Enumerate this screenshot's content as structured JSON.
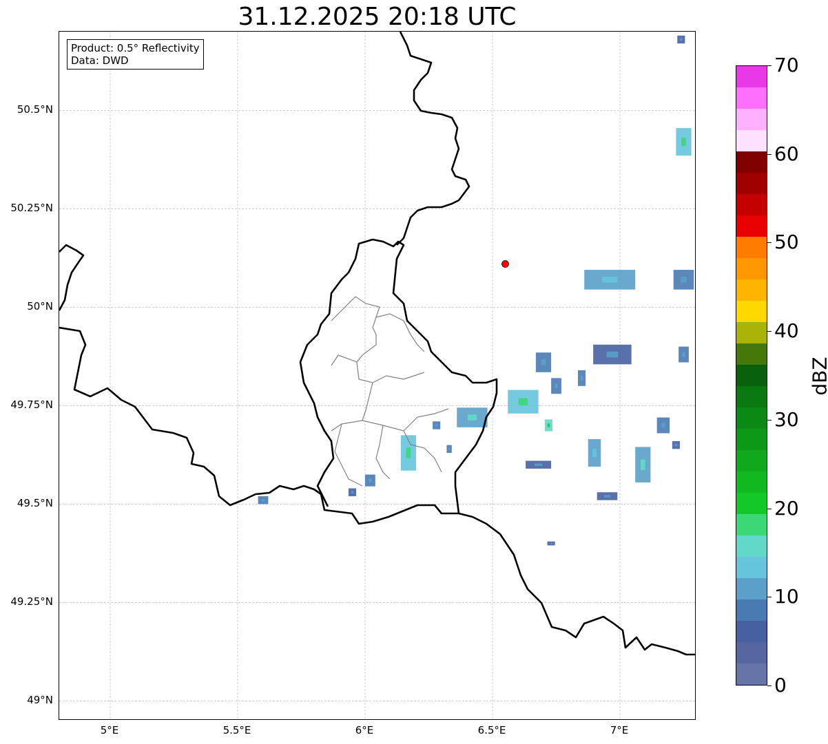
{
  "title": "31.12.2025 20:18 UTC",
  "info": {
    "product": "Product: 0.5° Reflectivity",
    "source": "Data: DWD"
  },
  "map": {
    "lon_range": [
      4.8,
      7.3
    ],
    "lat_range": [
      48.95,
      50.7
    ],
    "lat_ticks": [
      {
        "value": 49.0,
        "label": "49°N"
      },
      {
        "value": 49.25,
        "label": "49.25°N"
      },
      {
        "value": 49.5,
        "label": "49.5°N"
      },
      {
        "value": 49.75,
        "label": "49.75°N"
      },
      {
        "value": 50.0,
        "label": "50°N"
      },
      {
        "value": 50.25,
        "label": "50.25°N"
      },
      {
        "value": 50.5,
        "label": "50.5°N"
      }
    ],
    "lon_ticks": [
      {
        "value": 5.0,
        "label": "5°E"
      },
      {
        "value": 5.5,
        "label": "5.5°E"
      },
      {
        "value": 6.0,
        "label": "6°E"
      },
      {
        "value": 6.5,
        "label": "6.5°E"
      },
      {
        "value": 7.0,
        "label": "7°E"
      }
    ],
    "radar_site": {
      "lon": 6.55,
      "lat": 50.11,
      "color": "#ff0000"
    },
    "gridline_color": "#b0b0b0",
    "border_color": "#000000",
    "district_color": "#808080"
  },
  "colorbar": {
    "label": "dBZ",
    "min": 0,
    "max": 70,
    "ticks": [
      "0",
      "10",
      "20",
      "30",
      "40",
      "50",
      "60",
      "70"
    ],
    "colors": [
      "#6674a8",
      "#5566a0",
      "#4660a2",
      "#4a7ab2",
      "#5aa0c8",
      "#66c4dc",
      "#62d8c8",
      "#3cd878",
      "#14c828",
      "#12b820",
      "#10a81c",
      "#0e9818",
      "#0c8814",
      "#0a7810",
      "#08600c",
      "#457809",
      "#aab408",
      "#ffd800",
      "#ffb400",
      "#ff9800",
      "#ff7c00",
      "#e80000",
      "#c40000",
      "#a00000",
      "#800000",
      "#ffe0ff",
      "#ffb0ff",
      "#ff70ff",
      "#e838e8"
    ]
  },
  "echoes": [
    {
      "lon": 6.62,
      "lat": 49.76,
      "w": 0.12,
      "h": 0.06,
      "dbz": 14
    },
    {
      "lon": 6.42,
      "lat": 49.72,
      "w": 0.12,
      "h": 0.05,
      "dbz": 12
    },
    {
      "lon": 6.17,
      "lat": 49.63,
      "w": 0.06,
      "h": 0.09,
      "dbz": 14
    },
    {
      "lon": 6.02,
      "lat": 49.56,
      "w": 0.04,
      "h": 0.03,
      "dbz": 8
    },
    {
      "lon": 6.28,
      "lat": 49.7,
      "w": 0.03,
      "h": 0.02,
      "dbz": 8
    },
    {
      "lon": 6.33,
      "lat": 49.64,
      "w": 0.02,
      "h": 0.02,
      "dbz": 8
    },
    {
      "lon": 5.95,
      "lat": 49.53,
      "w": 0.03,
      "h": 0.02,
      "dbz": 6
    },
    {
      "lon": 6.7,
      "lat": 49.86,
      "w": 0.06,
      "h": 0.05,
      "dbz": 8
    },
    {
      "lon": 6.75,
      "lat": 49.8,
      "w": 0.04,
      "h": 0.04,
      "dbz": 8
    },
    {
      "lon": 6.85,
      "lat": 49.82,
      "w": 0.03,
      "h": 0.04,
      "dbz": 8
    },
    {
      "lon": 6.97,
      "lat": 49.88,
      "w": 0.15,
      "h": 0.05,
      "dbz": 6
    },
    {
      "lon": 6.96,
      "lat": 50.07,
      "w": 0.2,
      "h": 0.05,
      "dbz": 10
    },
    {
      "lon": 7.25,
      "lat": 50.07,
      "w": 0.08,
      "h": 0.05,
      "dbz": 8
    },
    {
      "lon": 7.25,
      "lat": 50.42,
      "w": 0.06,
      "h": 0.07,
      "dbz": 14
    },
    {
      "lon": 7.25,
      "lat": 49.88,
      "w": 0.04,
      "h": 0.04,
      "dbz": 8
    },
    {
      "lon": 7.09,
      "lat": 49.6,
      "w": 0.06,
      "h": 0.09,
      "dbz": 12
    },
    {
      "lon": 6.9,
      "lat": 49.63,
      "w": 0.05,
      "h": 0.07,
      "dbz": 10
    },
    {
      "lon": 7.17,
      "lat": 49.7,
      "w": 0.05,
      "h": 0.04,
      "dbz": 8
    },
    {
      "lon": 6.72,
      "lat": 49.7,
      "w": 0.03,
      "h": 0.03,
      "dbz": 16
    },
    {
      "lon": 6.95,
      "lat": 49.52,
      "w": 0.08,
      "h": 0.02,
      "dbz": 6
    },
    {
      "lon": 6.68,
      "lat": 49.6,
      "w": 0.1,
      "h": 0.02,
      "dbz": 6
    },
    {
      "lon": 5.6,
      "lat": 49.51,
      "w": 0.04,
      "h": 0.02,
      "dbz": 8
    },
    {
      "lon": 6.73,
      "lat": 49.4,
      "w": 0.03,
      "h": 0.01,
      "dbz": 6
    },
    {
      "lon": 7.24,
      "lat": 50.68,
      "w": 0.03,
      "h": 0.02,
      "dbz": 6
    },
    {
      "lon": 7.22,
      "lat": 49.65,
      "w": 0.03,
      "h": 0.02,
      "dbz": 6
    }
  ]
}
